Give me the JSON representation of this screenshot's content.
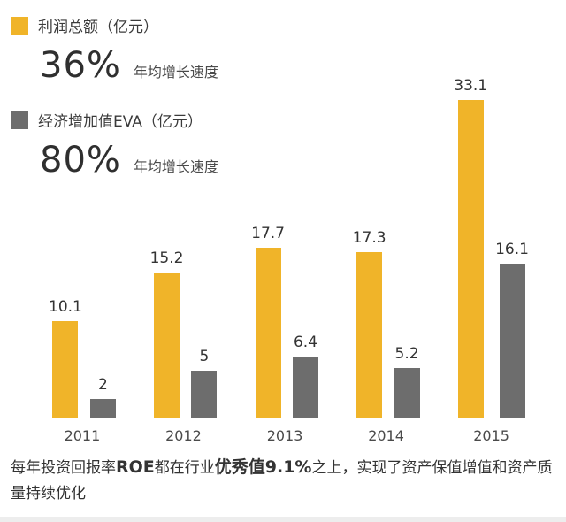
{
  "colors": {
    "profit": "#F0B429",
    "eva": "#6D6D6D",
    "text_dark": "#2f2f2f",
    "text_gray": "#4a4a4a"
  },
  "legend": {
    "profit": {
      "label": "利润总额（亿元）",
      "growth": "36%",
      "growth_caption": "年均增长速度"
    },
    "eva": {
      "label": "经济增加值EVA（亿元）",
      "growth": "80%",
      "growth_caption": "年均增长速度"
    }
  },
  "chart_data": {
    "type": "bar",
    "title": "",
    "categories": [
      "2011",
      "2012",
      "2013",
      "2014",
      "2015"
    ],
    "series": [
      {
        "name": "利润总额（亿元）",
        "key": "profit",
        "color": "#F0B429",
        "values": [
          10.1,
          15.2,
          17.7,
          17.3,
          33.1
        ]
      },
      {
        "name": "经济增加值EVA（亿元）",
        "key": "eva",
        "color": "#6D6D6D",
        "values": [
          2,
          5,
          6.4,
          5.2,
          16.1
        ]
      }
    ],
    "ylim": [
      0,
      35
    ],
    "grid": false,
    "axes_visible": false,
    "value_labels": true,
    "legend_position": "top-left"
  },
  "footer": {
    "segments": [
      {
        "text": "每年投资回报率",
        "bold": false
      },
      {
        "text": "ROE",
        "bold": true
      },
      {
        "text": "都在行业",
        "bold": false
      },
      {
        "text": "优秀值9.1%",
        "bold": true
      },
      {
        "text": "之上，实现了资产保值增值和资产质量持续优化",
        "bold": false
      }
    ]
  }
}
